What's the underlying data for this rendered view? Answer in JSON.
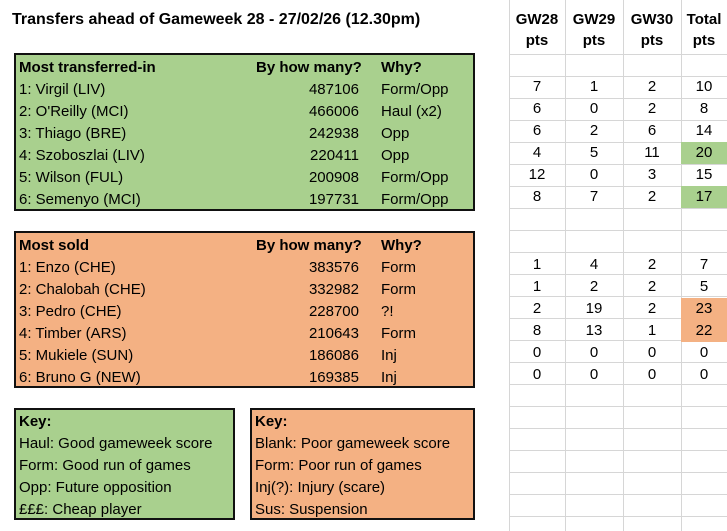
{
  "title": "Transfers ahead of Gameweek 28 - 27/02/26 (12.30pm)",
  "colors": {
    "green": "#a9d08e",
    "orange": "#f4b183"
  },
  "transferred_in": {
    "headers": {
      "name": "Most transferred-in",
      "count": "By how many?",
      "why": "Why?"
    },
    "rows": [
      {
        "name": "1: Virgil (LIV)",
        "count": "487106",
        "why": "Form/Opp"
      },
      {
        "name": "2: O'Reilly (MCI)",
        "count": "466006",
        "why": "Haul (x2)"
      },
      {
        "name": "3: Thiago (BRE)",
        "count": "242938",
        "why": "Opp"
      },
      {
        "name": "4: Szoboszlai (LIV)",
        "count": "220411",
        "why": "Opp"
      },
      {
        "name": "5: Wilson (FUL)",
        "count": "200908",
        "why": "Form/Opp"
      },
      {
        "name": "6: Semenyo (MCI)",
        "count": "197731",
        "why": "Form/Opp"
      }
    ]
  },
  "most_sold": {
    "headers": {
      "name": "Most sold",
      "count": "By how many?",
      "why": "Why?"
    },
    "rows": [
      {
        "name": "1: Enzo (CHE)",
        "count": "383576",
        "why": "Form"
      },
      {
        "name": "2: Chalobah (CHE)",
        "count": "332982",
        "why": "Form"
      },
      {
        "name": "3: Pedro (CHE)",
        "count": "228700",
        "why": "?!"
      },
      {
        "name": "4: Timber (ARS)",
        "count": "210643",
        "why": "Form"
      },
      {
        "name": "5: Mukiele (SUN)",
        "count": "186086",
        "why": "Inj"
      },
      {
        "name": "6: Bruno G (NEW)",
        "count": "169385",
        "why": "Inj"
      }
    ]
  },
  "key_in": {
    "heading": "Key:",
    "items": [
      "Haul: Good gameweek score",
      "Form: Good run of games",
      "Opp: Future opposition",
      "£££: Cheap player"
    ]
  },
  "key_sold": {
    "heading": "Key:",
    "items": [
      "Blank: Poor gameweek score",
      "Form: Poor run of games",
      "Inj(?): Injury (scare)",
      "Sus: Suspension"
    ]
  },
  "points": {
    "headers": [
      {
        "line1": "GW28",
        "line2": "pts"
      },
      {
        "line1": "GW29",
        "line2": "pts"
      },
      {
        "line1": "GW30",
        "line2": "pts"
      },
      {
        "line1": "Total",
        "line2": "pts"
      }
    ],
    "in_rows": [
      [
        "7",
        "1",
        "2",
        "10"
      ],
      [
        "6",
        "0",
        "2",
        "8"
      ],
      [
        "6",
        "2",
        "6",
        "14"
      ],
      [
        "4",
        "5",
        "11",
        "20"
      ],
      [
        "12",
        "0",
        "3",
        "15"
      ],
      [
        "8",
        "7",
        "2",
        "17"
      ]
    ],
    "sold_rows": [
      [
        "1",
        "4",
        "2",
        "7"
      ],
      [
        "1",
        "2",
        "2",
        "5"
      ],
      [
        "2",
        "19",
        "2",
        "23"
      ],
      [
        "8",
        "13",
        "1",
        "22"
      ],
      [
        "0",
        "0",
        "0",
        "0"
      ],
      [
        "0",
        "0",
        "0",
        "0"
      ]
    ]
  }
}
